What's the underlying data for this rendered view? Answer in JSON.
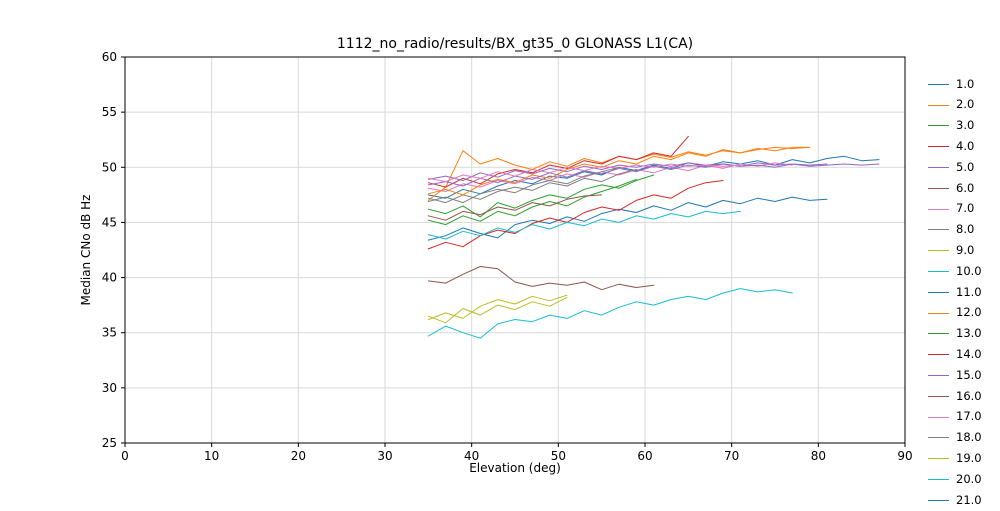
{
  "figure": {
    "background": "#ffffff"
  },
  "chart_data": {
    "type": "line",
    "title": "1112_no_radio/results/BX_gt35_0 GLONASS L1(CA)",
    "xlabel": "Elevation (deg)",
    "ylabel": "Median CNo dB Hz",
    "xlim": [
      0,
      90
    ],
    "ylim": [
      25,
      60
    ],
    "xticks": [
      0,
      10,
      20,
      30,
      40,
      50,
      60,
      70,
      80,
      90
    ],
    "yticks": [
      25,
      30,
      35,
      40,
      45,
      50,
      55,
      60
    ],
    "grid": true,
    "grid_color": "#d9d9d9",
    "spine_color": "#000000",
    "legend_position": "right",
    "legend_items_partial": [
      {
        "label": "21.0",
        "color": "#1f77b4"
      }
    ],
    "series": [
      {
        "name": "1.0",
        "color": "#1f77b4",
        "x_start": 35,
        "x_step": 2,
        "y": [
          47.5,
          47.2,
          48.0,
          47.6,
          48.3,
          48.8,
          48.5,
          49.2,
          49.0,
          49.6,
          49.3,
          50.0,
          49.7,
          50.2,
          49.9,
          50.4,
          50.1,
          50.5,
          50.3,
          50.6,
          50.2,
          50.7,
          50.4,
          50.8,
          51.0,
          50.6,
          50.7
        ]
      },
      {
        "name": "2.0",
        "color": "#ff7f0e",
        "x_start": 35,
        "x_step": 2,
        "y": [
          47.0,
          48.2,
          51.5,
          50.3,
          50.8,
          50.2,
          49.8,
          50.5,
          50.1,
          50.8,
          50.4,
          51.0,
          50.7,
          51.2,
          50.9,
          51.4,
          51.1,
          51.5,
          51.3,
          51.6,
          51.8,
          51.7,
          51.8
        ]
      },
      {
        "name": "3.0",
        "color": "#2ca02c",
        "x_start": 35,
        "x_step": 2,
        "y": [
          46.2,
          45.8,
          46.5,
          45.5,
          46.8,
          46.3,
          47.0,
          47.5,
          47.2,
          48.0,
          48.4,
          48.1,
          48.8,
          49.3
        ]
      },
      {
        "name": "4.0",
        "color": "#d62728",
        "x_start": 35,
        "x_step": 2,
        "y": [
          48.6,
          48.2,
          49.0,
          48.5,
          49.4,
          49.8,
          49.5,
          50.2,
          49.9,
          50.6,
          50.3,
          51.0,
          50.7,
          51.3,
          51.0,
          52.8
        ]
      },
      {
        "name": "5.0",
        "color": "#9467bd",
        "x_start": 35,
        "x_step": 2,
        "y": [
          48.9,
          49.2,
          48.8,
          49.5,
          49.1,
          49.7,
          49.4,
          49.9,
          49.6,
          50.1,
          49.8,
          50.2,
          50.0,
          50.3,
          50.1,
          50.4,
          50.2,
          50.3,
          50.1,
          50.4,
          50.2,
          50.3,
          50.2,
          50.3
        ]
      },
      {
        "name": "6.0",
        "color": "#8c564b",
        "x_start": 35,
        "x_step": 2,
        "y": [
          39.7,
          39.5,
          40.3,
          41.0,
          40.8,
          39.6,
          39.2,
          39.5,
          39.3,
          39.6,
          38.9,
          39.4,
          39.1,
          39.3
        ]
      },
      {
        "name": "7.0",
        "color": "#e377c2",
        "x_start": 35,
        "x_step": 2,
        "y": [
          48.1,
          47.8,
          48.5,
          48.2,
          48.8,
          48.5,
          49.1,
          48.8,
          49.4,
          49.1,
          49.6,
          49.3,
          49.8,
          49.5,
          50.0,
          49.7,
          50.2,
          49.9,
          50.3,
          50.1,
          50.4,
          50.2
        ]
      },
      {
        "name": "8.0",
        "color": "#7f7f7f",
        "x_start": 35,
        "x_step": 2,
        "y": [
          47.2,
          46.8,
          47.5,
          47.1,
          47.8,
          48.2,
          47.9,
          48.6,
          48.3,
          49.0,
          48.7,
          49.4,
          49.8
        ]
      },
      {
        "name": "9.0",
        "color": "#bcbd22",
        "x_start": 35,
        "x_step": 2,
        "y": [
          36.5,
          35.9,
          37.2,
          36.6,
          37.5,
          37.1,
          37.8,
          37.4,
          38.2
        ]
      },
      {
        "name": "10.0",
        "color": "#17becf",
        "x_start": 35,
        "x_step": 2,
        "y": [
          34.7,
          35.6,
          35.0,
          34.5,
          35.8,
          36.2,
          36.0,
          36.6,
          36.3,
          37.0,
          36.6,
          37.3,
          37.8,
          37.5,
          38.0,
          38.3,
          38.0,
          38.6,
          39.0,
          38.7,
          38.9,
          38.6
        ]
      },
      {
        "name": "11.0",
        "color": "#1f77b4",
        "x_start": 35,
        "x_step": 2,
        "y": [
          43.4,
          43.8,
          44.5,
          44.0,
          43.6,
          44.8,
          45.2,
          44.9,
          45.5,
          45.1,
          45.8,
          46.2,
          45.9,
          46.5,
          46.1,
          46.8,
          46.4,
          47.0,
          46.7,
          47.2,
          46.9,
          47.3,
          47.0,
          47.1
        ]
      },
      {
        "name": "12.0",
        "color": "#ff7f0e",
        "x_start": 35,
        "x_step": 2,
        "y": [
          47.6,
          48.0,
          47.5,
          48.4,
          48.9,
          48.6,
          49.3,
          49.0,
          49.8,
          50.3,
          50.0,
          50.6,
          50.3,
          51.0,
          50.7,
          51.3,
          51.0,
          51.6,
          51.3,
          51.7,
          51.5,
          51.8,
          51.8
        ]
      },
      {
        "name": "13.0",
        "color": "#2ca02c",
        "x_start": 35,
        "x_step": 2,
        "y": [
          45.2,
          44.8,
          45.6,
          45.1,
          46.0,
          45.6,
          46.4,
          46.9,
          46.5,
          47.3,
          47.8,
          48.3,
          48.9
        ]
      },
      {
        "name": "14.0",
        "color": "#d62728",
        "x_start": 35,
        "x_step": 2,
        "y": [
          42.6,
          43.2,
          42.8,
          43.8,
          44.3,
          44.0,
          44.9,
          45.4,
          45.0,
          45.9,
          46.4,
          46.1,
          47.0,
          47.5,
          47.2,
          48.1,
          48.6,
          48.8
        ]
      },
      {
        "name": "15.0",
        "color": "#9467bd",
        "x_start": 35,
        "x_step": 2,
        "y": [
          48.4,
          48.7,
          48.3,
          49.0,
          48.6,
          49.2,
          48.9,
          49.5,
          49.1,
          49.7,
          49.4,
          49.9,
          49.6,
          50.1,
          49.8,
          50.2,
          50.0,
          50.3,
          50.1,
          50.2,
          50.0,
          50.3,
          50.1,
          50.2,
          50.3,
          50.2,
          50.3
        ]
      },
      {
        "name": "16.0",
        "color": "#8c564b",
        "x_start": 35,
        "x_step": 2,
        "y": [
          45.6,
          45.2,
          46.0,
          45.7,
          46.4,
          46.1,
          46.8,
          46.5,
          47.1,
          47.4,
          47.5
        ]
      },
      {
        "name": "17.0",
        "color": "#e377c2",
        "x_start": 35,
        "x_step": 2,
        "y": [
          49.0,
          48.7,
          49.3,
          49.0,
          49.6,
          49.2,
          49.8,
          49.5,
          50.0,
          49.7,
          50.1,
          49.9,
          50.2,
          50.0,
          50.3,
          50.1,
          50.2,
          50.1,
          50.2
        ]
      },
      {
        "name": "18.0",
        "color": "#7f7f7f",
        "x_start": 35,
        "x_step": 2,
        "y": [
          46.9,
          47.3,
          46.8,
          47.6,
          48.0,
          47.7,
          48.4,
          48.8,
          48.5,
          49.2,
          49.6,
          50.0
        ]
      },
      {
        "name": "19.0",
        "color": "#bcbd22",
        "x_start": 35,
        "x_step": 2,
        "y": [
          36.2,
          36.8,
          36.3,
          37.4,
          38.0,
          37.6,
          38.3,
          37.9,
          38.4
        ]
      },
      {
        "name": "20.0",
        "color": "#17becf",
        "x_start": 35,
        "x_step": 2,
        "y": [
          43.9,
          43.5,
          44.2,
          43.8,
          44.5,
          44.1,
          44.8,
          44.4,
          45.0,
          44.7,
          45.3,
          45.0,
          45.6,
          45.3,
          45.8,
          45.5,
          46.0,
          45.8,
          46.0
        ]
      }
    ]
  }
}
